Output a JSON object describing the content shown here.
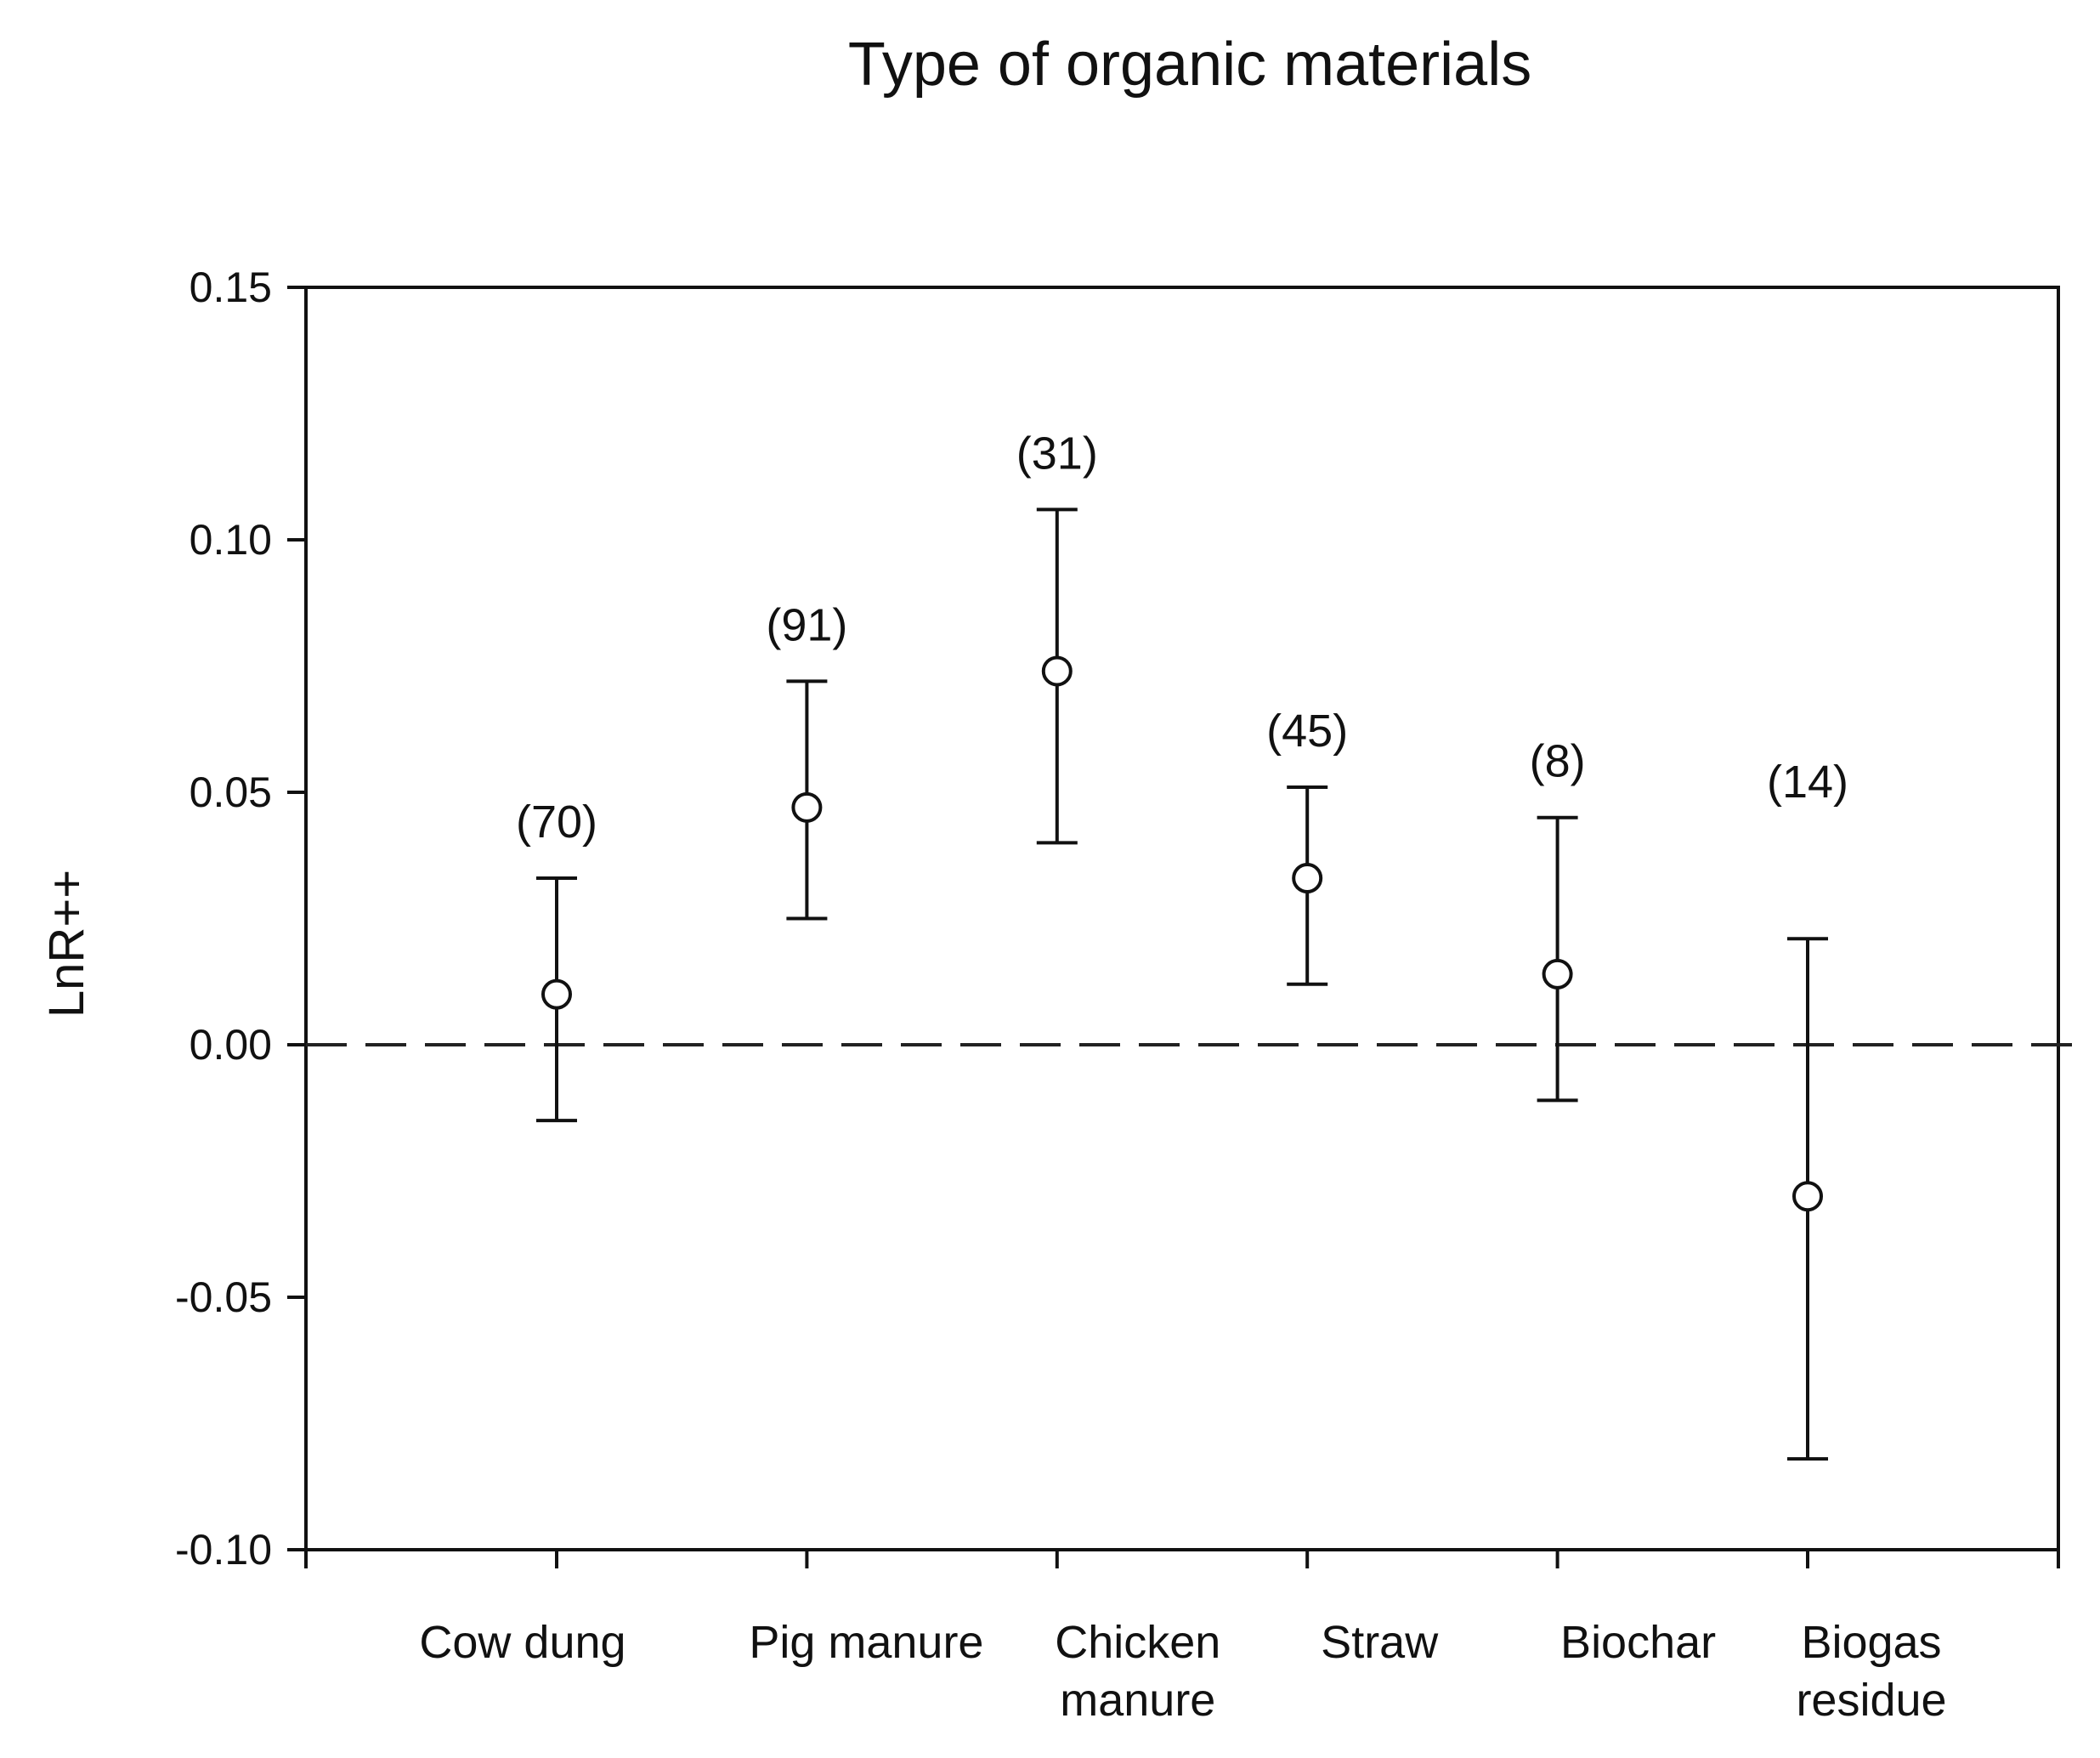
{
  "chart_data": {
    "type": "scatter",
    "subtype": "error-bar",
    "title": "Type of organic materials",
    "xlabel": "",
    "ylabel": "LnR++",
    "ylim": [
      -0.1,
      0.15
    ],
    "yticks": [
      -0.1,
      -0.05,
      0.0,
      0.05,
      0.1,
      0.15
    ],
    "ytick_labels": [
      "-0.10",
      "-0.05",
      "0.00",
      "0.05",
      "0.10",
      "0.15"
    ],
    "reference_line": {
      "y": 0.0,
      "style": "dashed"
    },
    "grid": false,
    "categories": [
      {
        "lines": [
          "Cow dung"
        ]
      },
      {
        "lines": [
          "Pig manure"
        ]
      },
      {
        "lines": [
          "Chicken",
          "manure"
        ]
      },
      {
        "lines": [
          "Straw"
        ]
      },
      {
        "lines": [
          "Biochar"
        ]
      },
      {
        "lines": [
          "Biogas",
          "residue"
        ]
      }
    ],
    "points": [
      {
        "mean": 0.01,
        "lower": -0.015,
        "upper": 0.033,
        "n_label": "(70)"
      },
      {
        "mean": 0.047,
        "lower": 0.025,
        "upper": 0.072,
        "n_label": "(91)"
      },
      {
        "mean": 0.074,
        "lower": 0.04,
        "upper": 0.106,
        "n_label": "(31)"
      },
      {
        "mean": 0.033,
        "lower": 0.012,
        "upper": 0.051,
        "n_label": "(45)"
      },
      {
        "mean": 0.014,
        "lower": -0.011,
        "upper": 0.045,
        "n_label": "(8)"
      },
      {
        "mean": -0.03,
        "lower": -0.082,
        "upper": 0.021,
        "n_label": "(14)"
      }
    ]
  }
}
